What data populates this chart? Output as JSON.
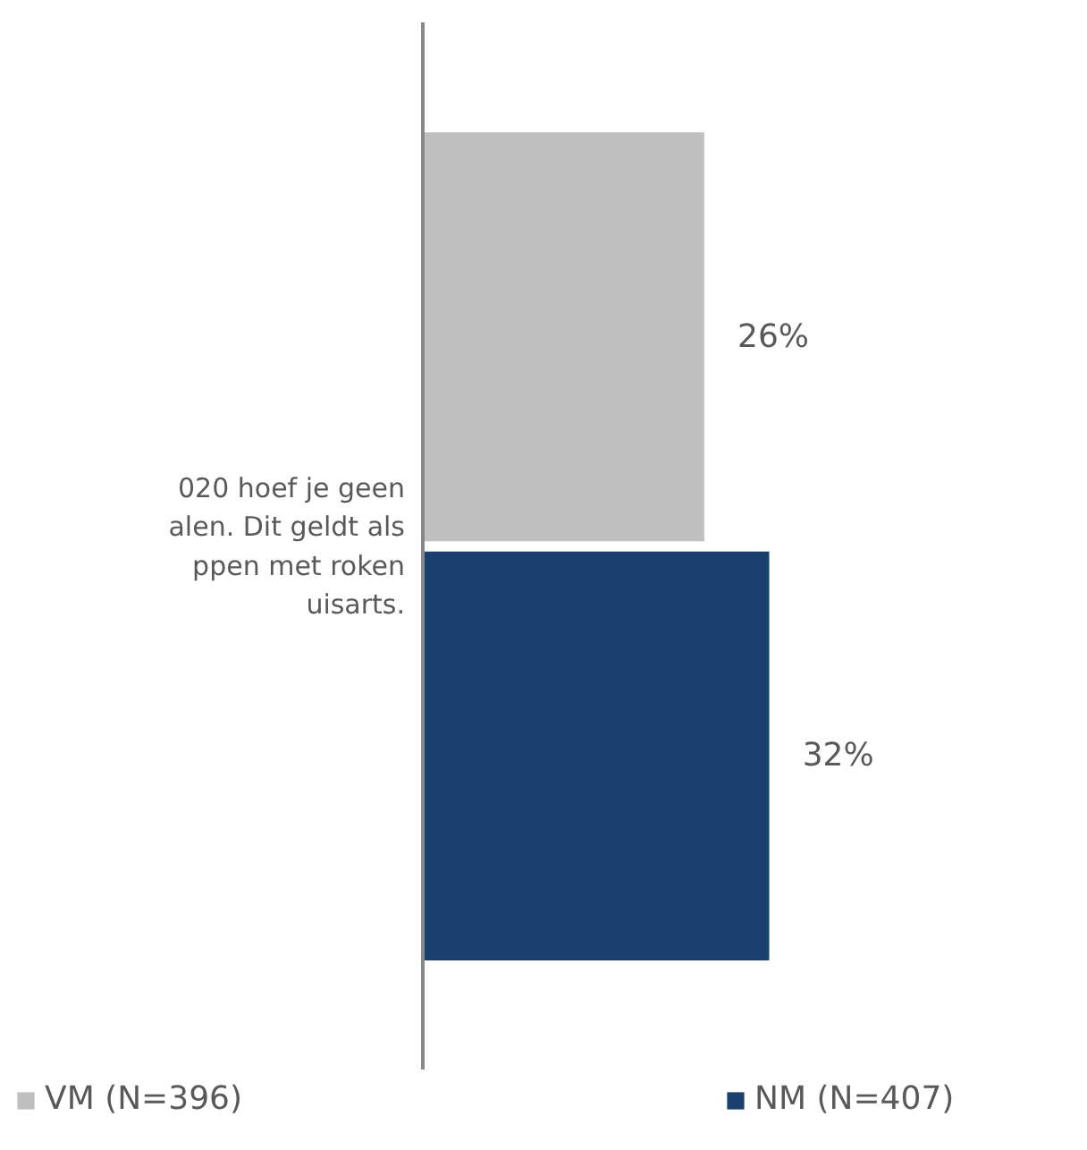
{
  "chart_data": {
    "type": "bar",
    "orientation": "horizontal",
    "categories": [
      null
    ],
    "annotations": [
      "020 hoef je geen\nalen. Dit geldt als\nppen met roken\nuisarts."
    ],
    "series": [
      {
        "name": "VM (N=396)",
        "color": "#bfbfbf",
        "values": [
          26
        ],
        "value_labels": [
          "26%"
        ]
      },
      {
        "name": "NM (N=407)",
        "color": "#1a4070",
        "values": [
          32
        ],
        "value_labels": [
          "32%"
        ]
      }
    ],
    "legend": "bottom",
    "grid": false
  }
}
